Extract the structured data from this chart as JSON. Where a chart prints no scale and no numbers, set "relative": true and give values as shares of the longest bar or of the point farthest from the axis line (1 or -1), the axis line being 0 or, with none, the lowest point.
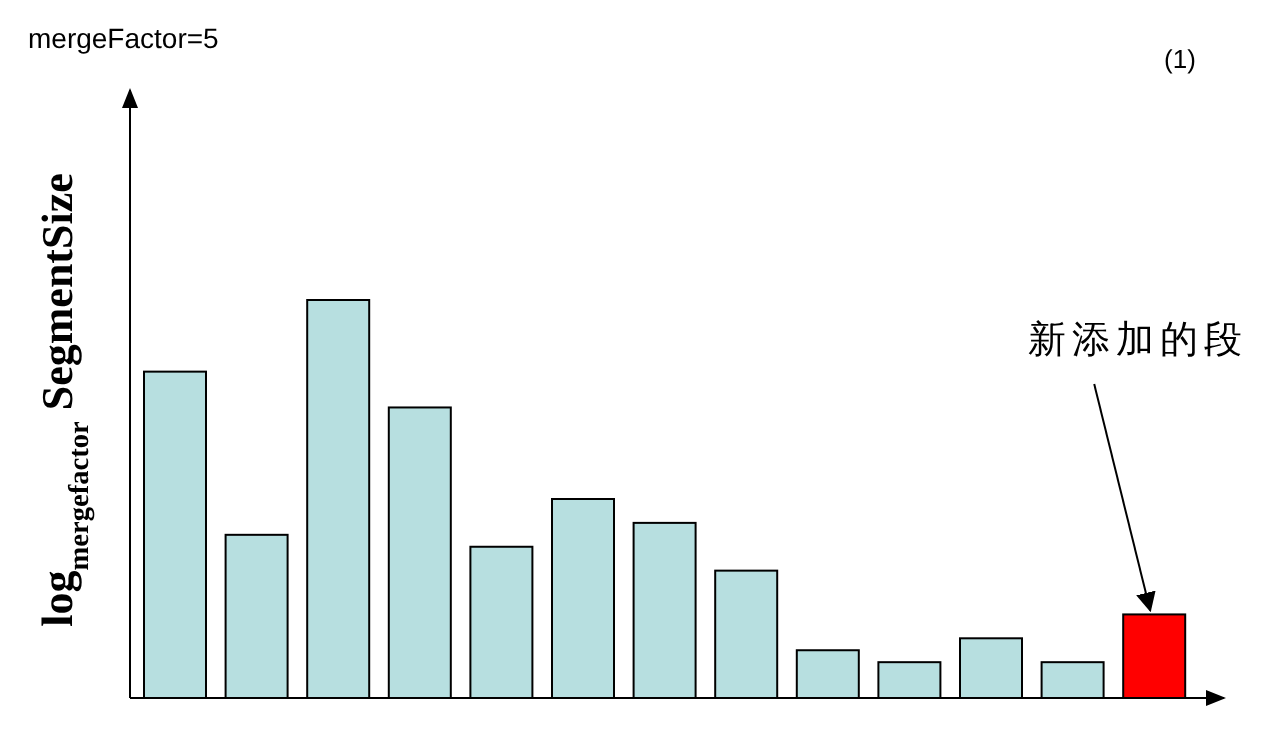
{
  "chart_data": {
    "type": "bar",
    "title": "mergeFactor=5",
    "ylabel": "log$_{mergefactor}$ SegmentSize",
    "relative": true,
    "categories": [
      null,
      null,
      null,
      null,
      null,
      null,
      null,
      null,
      null,
      null,
      null,
      null,
      null
    ],
    "values": [
      0.82,
      0.41,
      1,
      0.73,
      0.38,
      0.5,
      0.44,
      0.32,
      0.12,
      0.09,
      0.15,
      0.09,
      0.21
    ],
    "colors": [
      "#b7dfe0",
      "#b7dfe0",
      "#b7dfe0",
      "#b7dfe0",
      "#b7dfe0",
      "#b7dfe0",
      "#b7dfe0",
      "#b7dfe0",
      "#b7dfe0",
      "#b7dfe0",
      "#b7dfe0",
      "#b7dfe0",
      "#ff0000"
    ],
    "annotations": [
      "(1)",
      {
        "text": "新添加的段",
        "y": 0.21
      }
    ]
  }
}
